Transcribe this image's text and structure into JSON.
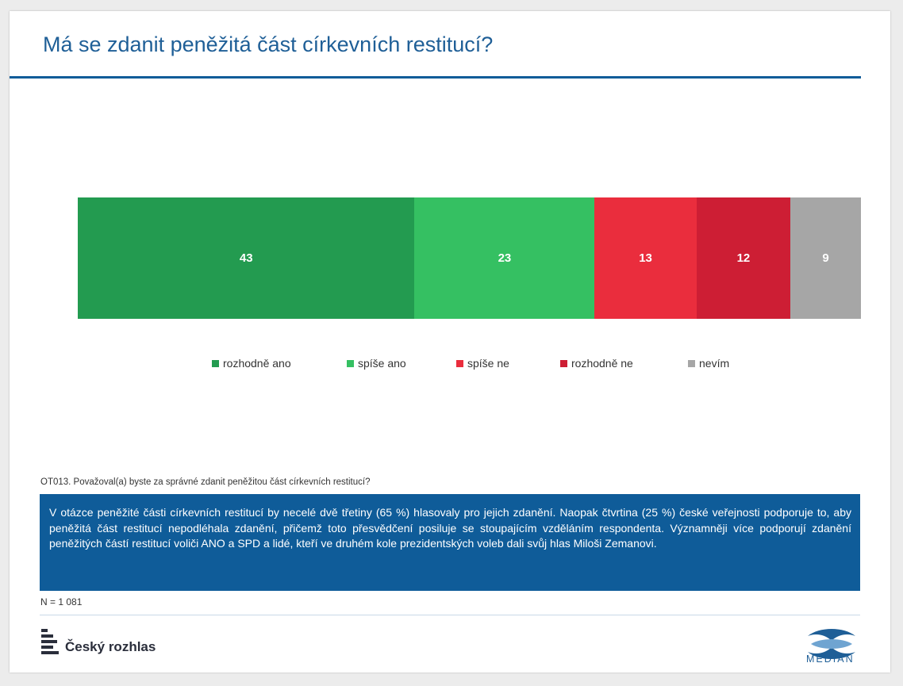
{
  "title": "Má se zdanit peněžitá část církevních restitucí?",
  "chart_data": {
    "type": "bar",
    "orientation": "horizontal-stacked",
    "unit": "%",
    "series": [
      {
        "name": "rozhodně ano",
        "value": 43,
        "color": "#239b50"
      },
      {
        "name": "spíše ano",
        "value": 23,
        "color": "#35c062"
      },
      {
        "name": "spíše ne",
        "value": 13,
        "color": "#ea2d3d"
      },
      {
        "name": "rozhodně ne",
        "value": 12,
        "color": "#cd1e34"
      },
      {
        "name": "nevím",
        "value": 9,
        "color": "#a6a6a6"
      }
    ],
    "legend_position": "bottom",
    "grid": false
  },
  "question": "OT013. Považoval(a) byste za správné zdanit peněžitou část církevních restitucí?",
  "note": "V otázce peněžité části církevních restitucí by necelé dvě třetiny (65 %) hlasovaly pro jejich zdanění. Naopak čtvrtina (25 %) české veřejnosti podporuje to, aby peněžitá část restitucí nepodléhala zdanění, přičemž toto přesvědčení posiluje se stoupajícím vzděláním respondenta. Významněji více podporují zdanění peněžitých částí restitucí voliči ANO a SPD a lidé, kteří ve druhém kole prezidentských voleb dali svůj hlas Miloši Zemanovi.",
  "sample": "N = 1 081",
  "footer": {
    "left_logo": "Český rozhlas",
    "right_logo": "MEDIAN"
  },
  "colors": {
    "brand_blue": "#0f5c99",
    "title_blue": "#1f5f97"
  }
}
